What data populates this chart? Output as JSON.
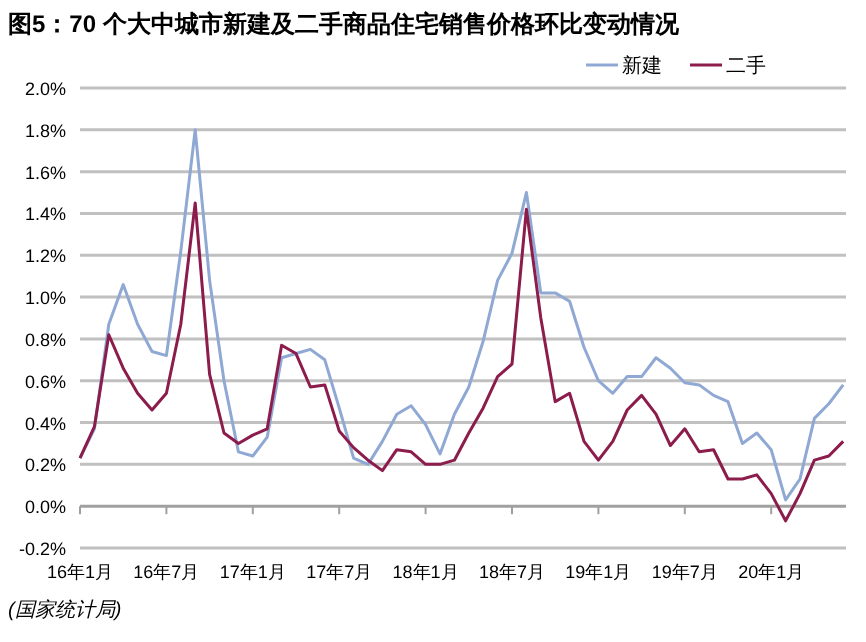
{
  "chart_data": {
    "type": "line",
    "title": "图5：70 个大中城市新建及二手商品住宅销售价格环比变动情况",
    "categories": [
      "16年1月",
      null,
      null,
      null,
      null,
      null,
      "16年7月",
      null,
      null,
      null,
      null,
      null,
      "17年1月",
      null,
      null,
      null,
      null,
      null,
      "17年7月",
      null,
      null,
      null,
      null,
      null,
      "18年1月",
      null,
      null,
      null,
      null,
      null,
      "18年7月",
      null,
      null,
      null,
      null,
      null,
      "19年1月",
      null,
      null,
      null,
      null,
      null,
      "19年7月",
      null,
      null,
      null,
      null,
      null,
      "20年1月",
      null,
      null,
      null,
      null,
      null
    ],
    "series": [
      {
        "name": "新建",
        "color": "#8fa8d4",
        "values": [
          0.23,
          0.37,
          0.87,
          1.06,
          0.87,
          0.74,
          0.72,
          1.22,
          1.8,
          1.08,
          0.6,
          0.26,
          0.24,
          0.33,
          0.71,
          0.73,
          0.75,
          0.7,
          0.47,
          0.23,
          0.2,
          0.31,
          0.44,
          0.48,
          0.39,
          0.25,
          0.44,
          0.57,
          0.79,
          1.08,
          1.21,
          1.5,
          1.02,
          1.02,
          0.98,
          0.76,
          0.6,
          0.54,
          0.62,
          0.62,
          0.71,
          0.66,
          0.59,
          0.58,
          0.53,
          0.5,
          0.3,
          0.35,
          0.27,
          0.03,
          0.13,
          0.42,
          0.49,
          0.58
        ]
      },
      {
        "name": "二手",
        "color": "#8b1c4c",
        "values": [
          0.23,
          0.38,
          0.82,
          0.66,
          0.54,
          0.46,
          0.54,
          0.87,
          1.45,
          0.63,
          0.35,
          0.3,
          0.34,
          0.37,
          0.77,
          0.73,
          0.57,
          0.58,
          0.36,
          0.28,
          0.22,
          0.17,
          0.27,
          0.26,
          0.2,
          0.2,
          0.22,
          0.35,
          0.47,
          0.62,
          0.68,
          1.42,
          0.9,
          0.5,
          0.54,
          0.31,
          0.22,
          0.31,
          0.46,
          0.53,
          0.44,
          0.29,
          0.37,
          0.26,
          0.27,
          0.13,
          0.13,
          0.15,
          0.06,
          -0.07,
          0.06,
          0.22,
          0.24,
          0.31
        ]
      }
    ],
    "ylim": [
      -0.2,
      2.0
    ],
    "yticks": [
      {
        "value": -0.2,
        "label": "-0.2%"
      },
      {
        "value": 0,
        "label": "0.0%"
      },
      {
        "value": 0.2,
        "label": "0.2%"
      },
      {
        "value": 0.4,
        "label": "0.4%"
      },
      {
        "value": 0.6,
        "label": "0.6%"
      },
      {
        "value": 0.8,
        "label": "0.8%"
      },
      {
        "value": 1.0,
        "label": "1.0%"
      },
      {
        "value": 1.2,
        "label": "1.2%"
      },
      {
        "value": 1.4,
        "label": "1.4%"
      },
      {
        "value": 1.6,
        "label": "1.6%"
      },
      {
        "value": 1.8,
        "label": "1.8%"
      },
      {
        "value": 2.0,
        "label": "2.0%"
      }
    ],
    "grid": "y",
    "legend": "top right",
    "marker": "none",
    "line_style": "solid",
    "annotations": [
      "(国家统计局)"
    ]
  }
}
